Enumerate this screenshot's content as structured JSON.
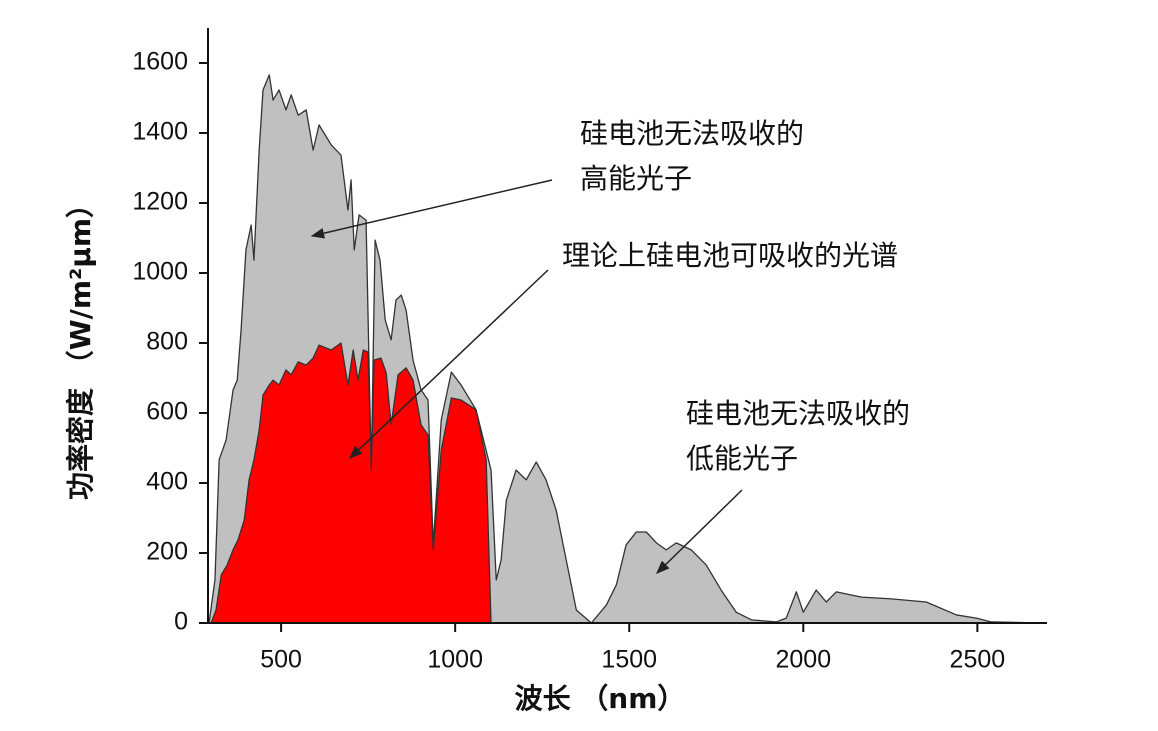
{
  "chart_data": {
    "type": "area",
    "xlabel": "波长 （nm）",
    "ylabel": "功率密度 （W/m²μm）",
    "xlim": [
      290,
      2700
    ],
    "xticks": [
      500,
      1000,
      1500,
      2000,
      2500
    ],
    "ylim": [
      0,
      1700
    ],
    "yticks": [
      0,
      200,
      400,
      600,
      800,
      1000,
      1200,
      1400,
      1600
    ],
    "series": [
      {
        "color": "#c0c0c0",
        "x": [
          293,
          310,
          322,
          342,
          362,
          374,
          385,
          399,
          414,
          422,
          437,
          448,
          466,
          477,
          494,
          514,
          529,
          549,
          572,
          592,
          609,
          644,
          672,
          692,
          701,
          710,
          724,
          744,
          759,
          770,
          784,
          799,
          816,
          830,
          845,
          859,
          879,
          902,
          922,
          937,
          960,
          989,
          1017,
          1060,
          1103,
          1118,
          1132,
          1147,
          1175,
          1204,
          1233,
          1261,
          1290,
          1319,
          1348,
          1391,
          1434,
          1463,
          1491,
          1520,
          1549,
          1578,
          1606,
          1635,
          1678,
          1721,
          1764,
          1807,
          1851,
          1922,
          1951,
          1980,
          2000,
          2037,
          2066,
          2095,
          2167,
          2253,
          2353,
          2440,
          2497,
          2540,
          2698
        ],
        "values": [
          0,
          123,
          466,
          523,
          666,
          694,
          837,
          1066,
          1137,
          1037,
          1351,
          1523,
          1566,
          1494,
          1523,
          1466,
          1509,
          1451,
          1466,
          1351,
          1423,
          1366,
          1337,
          1180,
          1266,
          1066,
          1166,
          1151,
          437,
          1094,
          1037,
          866,
          809,
          923,
          937,
          894,
          751,
          666,
          637,
          223,
          580,
          717,
          680,
          609,
          437,
          123,
          180,
          351,
          437,
          409,
          460,
          409,
          323,
          180,
          37,
          0,
          51,
          109,
          223,
          260,
          260,
          229,
          209,
          229,
          209,
          166,
          94,
          31,
          9,
          3,
          14,
          89,
          31,
          94,
          60,
          89,
          74,
          69,
          60,
          23,
          14,
          3,
          0
        ]
      },
      {
        "color": "#ff0000",
        "x": [
          299,
          313,
          328,
          345,
          362,
          376,
          394,
          408,
          422,
          437,
          448,
          466,
          477,
          494,
          514,
          529,
          549,
          572,
          592,
          609,
          644,
          672,
          692,
          707,
          721,
          736,
          750,
          759,
          767,
          787,
          802,
          816,
          836,
          859,
          879,
          902,
          922,
          937,
          960,
          989,
          1017,
          1060,
          1089,
          1103
        ],
        "values": [
          0,
          37,
          137,
          166,
          209,
          237,
          294,
          409,
          466,
          551,
          651,
          680,
          694,
          680,
          723,
          709,
          746,
          737,
          757,
          794,
          780,
          800,
          680,
          780,
          694,
          780,
          774,
          437,
          751,
          757,
          714,
          566,
          709,
          729,
          694,
          566,
          537,
          209,
          494,
          643,
          637,
          609,
          466,
          0
        ]
      }
    ],
    "annotations": [
      {
        "lines": [
          "硅电池无法吸收的",
          "高能光子"
        ]
      },
      {
        "lines": [
          "理论上硅电池可吸收的光谱"
        ]
      },
      {
        "lines": [
          "硅电池无法吸收的",
          "低能光子"
        ]
      }
    ]
  }
}
